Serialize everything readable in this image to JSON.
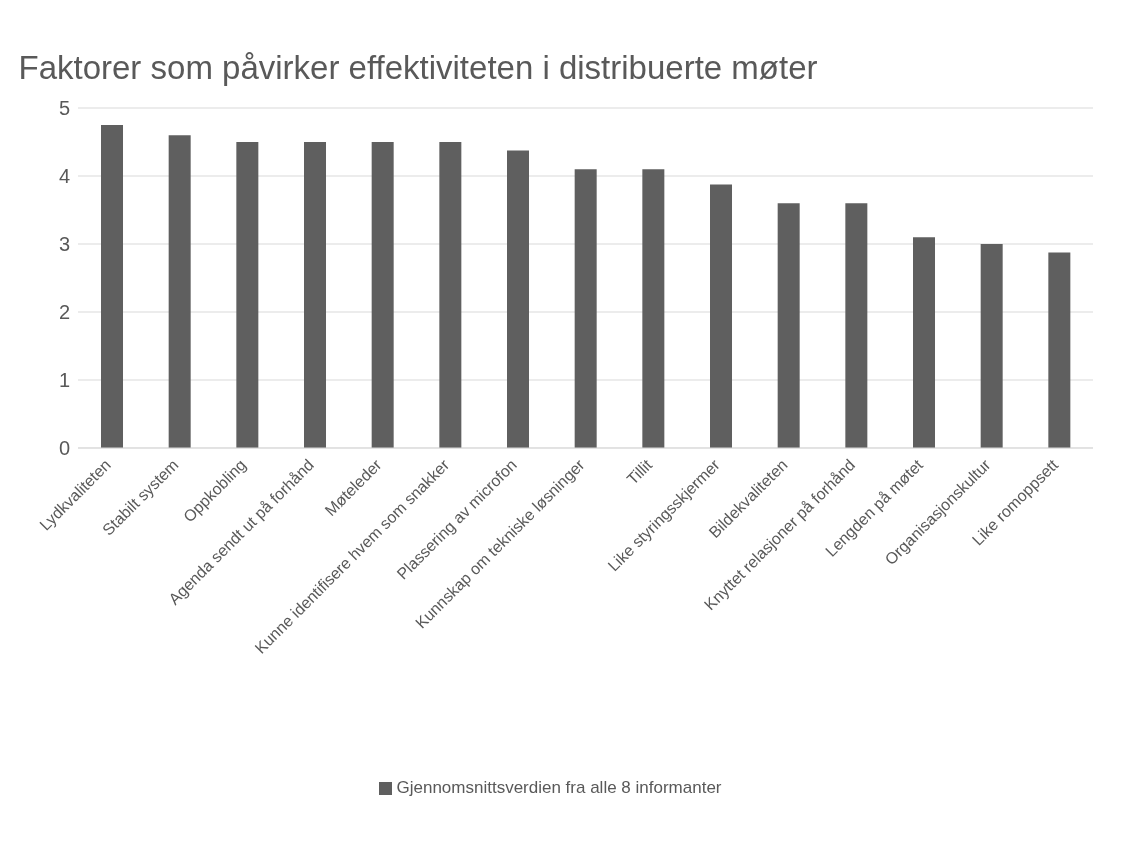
{
  "chart_data": {
    "type": "bar",
    "title": "Faktorer som påvirker effektiviteten i distribuerte møter",
    "categories": [
      "Lydkvaliteten",
      "Stabilt system",
      "Oppkobling",
      "Agenda sendt ut på forhånd",
      "Møteleder",
      "Kunne identifisere hvem som snakker",
      "Plassering av microfon",
      "Kunnskap om tekniske løsninger",
      "Tillit",
      "Like styringsskjermer",
      "Bildekvaliteten",
      "Knyttet relasjoner på forhånd",
      "Lengden på møtet",
      "Organisasjonskultur",
      "Like romoppsett"
    ],
    "series": [
      {
        "name": "Gjennomsnittsverdien fra alle 8 informanter",
        "color": "#5f5f5f",
        "values": [
          4.75,
          4.6,
          4.5,
          4.5,
          4.5,
          4.5,
          4.375,
          4.1,
          4.1,
          3.875,
          3.6,
          3.6,
          3.1,
          3.0,
          2.875
        ]
      }
    ],
    "ylim": [
      0,
      5
    ],
    "yticks": [
      0,
      1,
      2,
      3,
      4,
      5
    ],
    "grid": "y",
    "legend": "bottom"
  }
}
